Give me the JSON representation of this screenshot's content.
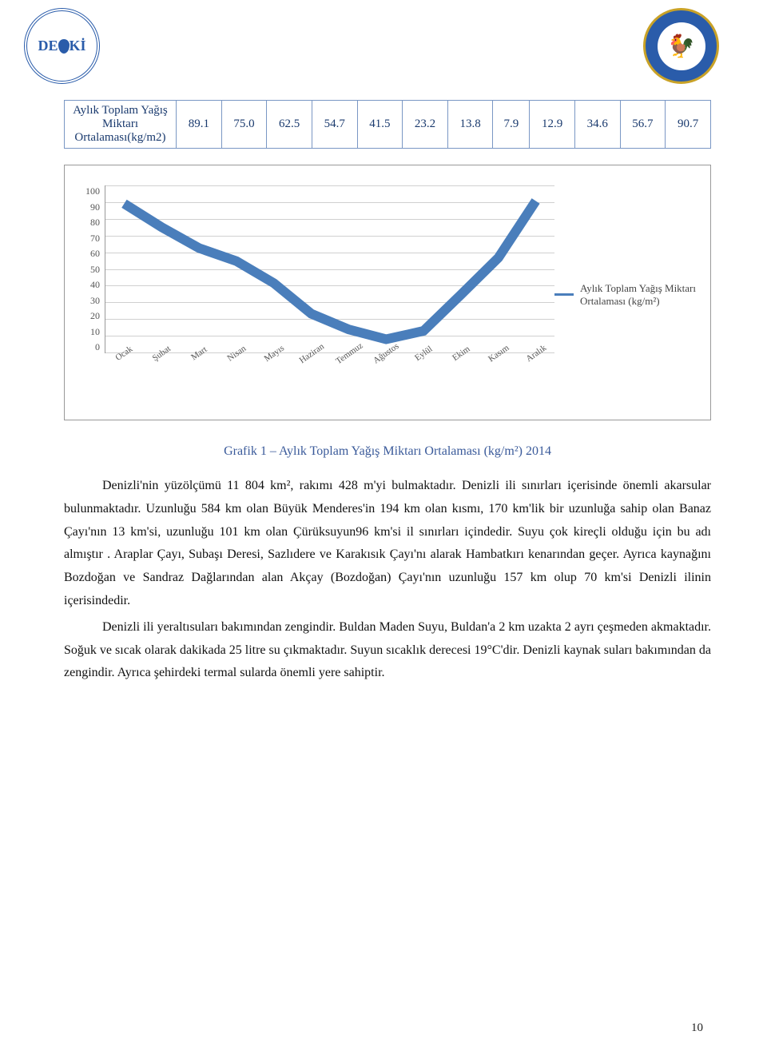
{
  "header": {
    "logo_left_text": "DESKİ",
    "logo_right_icon": "🐓"
  },
  "table": {
    "row_label": "Aylık Toplam Yağış Miktarı Ortalaması(kg/m2)",
    "values": [
      "89.1",
      "75.0",
      "62.5",
      "54.7",
      "41.5",
      "23.2",
      "13.8",
      "7.9",
      "12.9",
      "34.6",
      "56.7",
      "90.7"
    ]
  },
  "chart": {
    "type": "line",
    "legend_label": "Aylık Toplam Yağış Miktarı Ortalaması (kg/m²)",
    "ylim": [
      0,
      100
    ],
    "ytick_step": 10,
    "y_ticks": [
      "100",
      "90",
      "80",
      "70",
      "60",
      "50",
      "40",
      "30",
      "20",
      "10",
      "0"
    ],
    "categories": [
      "Ocak",
      "Şubat",
      "Mart",
      "Nisan",
      "Mayıs",
      "Haziran",
      "Temmuz",
      "Ağustos",
      "Eylül",
      "Ekim",
      "Kasım",
      "Aralık"
    ],
    "values": [
      89.1,
      75.0,
      62.5,
      54.7,
      41.5,
      23.2,
      13.8,
      7.9,
      12.9,
      34.6,
      56.7,
      90.7
    ],
    "line_color": "#4a7ebb",
    "grid_color": "#d0d0d0",
    "border_color": "#999999",
    "background_color": "#ffffff",
    "label_fontsize": 12
  },
  "caption": "Grafik 1 – Aylık Toplam Yağış Miktarı Ortalaması (kg/m²) 2014",
  "paragraphs": [
    "Denizli'nin yüzölçümü 11 804 km², rakımı 428 m'yi bulmaktadır. Denizli ili sınırları içerisinde önemli akarsular bulunmaktadır.  Uzunluğu 584 km olan Büyük Menderes'in 194 km olan kısmı, 170 km'lik bir uzunluğa sahip olan Banaz Çayı'nın 13 km'si, uzunluğu 101 km olan Çürüksuyun96 km'si il sınırları içindedir. Suyu çok kireçli olduğu için bu adı almıştır . Araplar Çayı, Subaşı Deresi, Sazlıdere ve Karakısık Çayı'nı alarak Hambatkırı kenarından geçer. Ayrıca kaynağını Bozdoğan ve Sandraz Dağlarından alan Akçay (Bozdoğan) Çayı'nın uzunluğu 157 km olup 70 km'si Denizli ilinin içerisindedir.",
    "Denizli ili yeraltısuları bakımından zengindir. Buldan Maden Suyu, Buldan'a 2 km uzakta 2 ayrı çeşmeden akmaktadır. Soğuk ve sıcak olarak dakikada 25 litre su çıkmaktadır. Suyun sıcaklık derecesi 19°C'dir. Denizli kaynak suları bakımından da zengindir. Ayrıca şehirdeki termal sularda önemli yere sahiptir."
  ],
  "page_number": "10"
}
